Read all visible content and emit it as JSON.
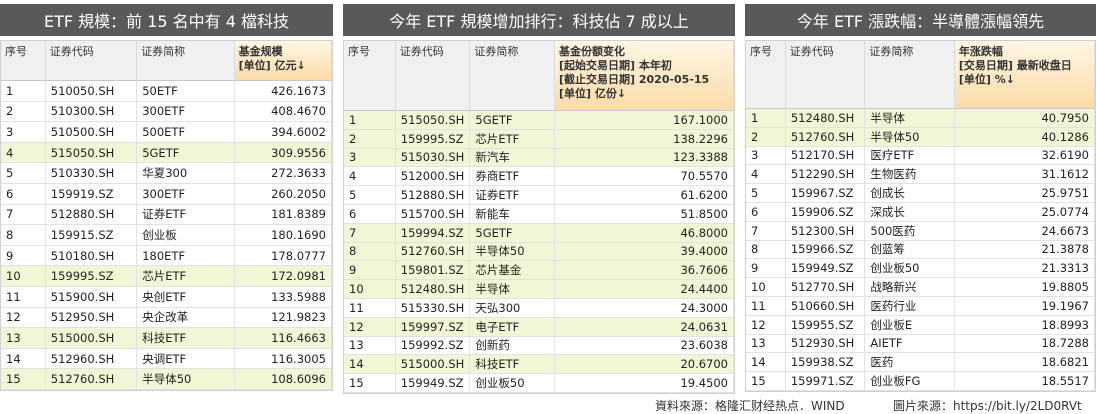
{
  "panels": [
    {
      "title": "ETF 規模：前 15 名中有 4 檔科技",
      "columns": [
        [
          "序号"
        ],
        [
          "证券代码"
        ],
        [
          "证券简称"
        ],
        [
          "基金规模",
          "[单位] 亿元↓"
        ]
      ],
      "rows": [
        [
          "1",
          "510050.SH",
          "50ETF",
          "426.1673"
        ],
        [
          "2",
          "510300.SH",
          "300ETF",
          "408.4670"
        ],
        [
          "3",
          "510500.SH",
          "500ETF",
          "394.6002"
        ],
        [
          "4",
          "515050.SH",
          "5GETF",
          "309.9556"
        ],
        [
          "5",
          "510330.SH",
          "华夏300",
          "272.3633"
        ],
        [
          "6",
          "159919.SZ",
          "300ETF",
          "260.2050"
        ],
        [
          "7",
          "512880.SH",
          "证券ETF",
          "181.8389"
        ],
        [
          "8",
          "159915.SZ",
          "创业板",
          "180.1690"
        ],
        [
          "9",
          "510180.SH",
          "180ETF",
          "178.0777"
        ],
        [
          "10",
          "159995.SZ",
          "芯片ETF",
          "172.0981"
        ],
        [
          "11",
          "515900.SH",
          "央创ETF",
          "133.5988"
        ],
        [
          "12",
          "512950.SH",
          "央企改革",
          "121.9823"
        ],
        [
          "13",
          "515000.SH",
          "科技ETF",
          "116.4663"
        ],
        [
          "14",
          "512960.SH",
          "央调ETF",
          "116.3005"
        ],
        [
          "15",
          "512760.SH",
          "半导体50",
          "108.6096"
        ]
      ],
      "highlighted_rows": [
        3,
        9,
        12,
        14
      ]
    },
    {
      "title": "今年 ETF 規模增加排行：科技佔 7 成以上",
      "columns": [
        [
          "序号"
        ],
        [
          "证券代码"
        ],
        [
          "证券简称"
        ],
        [
          "基金份额变化",
          "[起始交易日期] 本年初",
          "[截止交易日期] 2020-05-15",
          "[单位] 亿份↓"
        ]
      ],
      "rows": [
        [
          "1",
          "515050.SH",
          "5GETF",
          "167.1000"
        ],
        [
          "2",
          "159995.SZ",
          "芯片ETF",
          "138.2296"
        ],
        [
          "3",
          "515030.SH",
          "新汽车",
          "123.3388"
        ],
        [
          "4",
          "512000.SH",
          "券商ETF",
          "70.5570"
        ],
        [
          "5",
          "512880.SH",
          "证券ETF",
          "61.6200"
        ],
        [
          "6",
          "515700.SH",
          "新能车",
          "51.8500"
        ],
        [
          "7",
          "159994.SZ",
          "5GETF",
          "46.8000"
        ],
        [
          "8",
          "512760.SH",
          "半导体50",
          "39.4000"
        ],
        [
          "9",
          "159801.SZ",
          "芯片基金",
          "36.7606"
        ],
        [
          "10",
          "512480.SH",
          "半导体",
          "24.4400"
        ],
        [
          "11",
          "515330.SH",
          "天弘300",
          "24.3000"
        ],
        [
          "12",
          "159997.SZ",
          "电子ETF",
          "24.0631"
        ],
        [
          "13",
          "159992.SZ",
          "创新药",
          "23.6038"
        ],
        [
          "14",
          "515000.SH",
          "科技ETF",
          "20.6700"
        ],
        [
          "15",
          "159949.SZ",
          "创业板50",
          "19.4500"
        ]
      ],
      "highlighted_rows": [
        0,
        1,
        2,
        6,
        7,
        8,
        9,
        11,
        13
      ]
    },
    {
      "title": "今年 ETF 漲跌幅：半導體漲幅領先",
      "columns": [
        [
          "序号"
        ],
        [
          "证券代码"
        ],
        [
          "证券简称"
        ],
        [
          "年涨跌幅",
          "[交易日期] 最新收盘日",
          "[单位] %↓"
        ]
      ],
      "rows": [
        [
          "1",
          "512480.SH",
          "半导体",
          "40.7950"
        ],
        [
          "2",
          "512760.SH",
          "半导体50",
          "40.1286"
        ],
        [
          "3",
          "512170.SH",
          "医疗ETF",
          "32.6190"
        ],
        [
          "4",
          "512290.SH",
          "生物医药",
          "31.1612"
        ],
        [
          "5",
          "159967.SZ",
          "创成长",
          "25.9751"
        ],
        [
          "6",
          "159906.SZ",
          "深成长",
          "25.0774"
        ],
        [
          "7",
          "512300.SH",
          "500医药",
          "24.6673"
        ],
        [
          "8",
          "159966.SZ",
          "创蓝筹",
          "21.3878"
        ],
        [
          "9",
          "159949.SZ",
          "创业板50",
          "21.3313"
        ],
        [
          "10",
          "512770.SH",
          "战略新兴",
          "19.8805"
        ],
        [
          "11",
          "510660.SH",
          "医药行业",
          "19.1967"
        ],
        [
          "12",
          "159955.SZ",
          "创业板E",
          "18.8993"
        ],
        [
          "13",
          "512930.SH",
          "AIETF",
          "18.7288"
        ],
        [
          "14",
          "159938.SZ",
          "医药",
          "18.6821"
        ],
        [
          "15",
          "159971.SZ",
          "创业板FG",
          "18.5517"
        ]
      ],
      "highlighted_rows": [
        0,
        1
      ]
    }
  ],
  "footer": {
    "data_source": "資料來源：格隆汇财经热点．WIND",
    "image_source": "圖片來源：https://bit.ly/2LD0RVt"
  }
}
